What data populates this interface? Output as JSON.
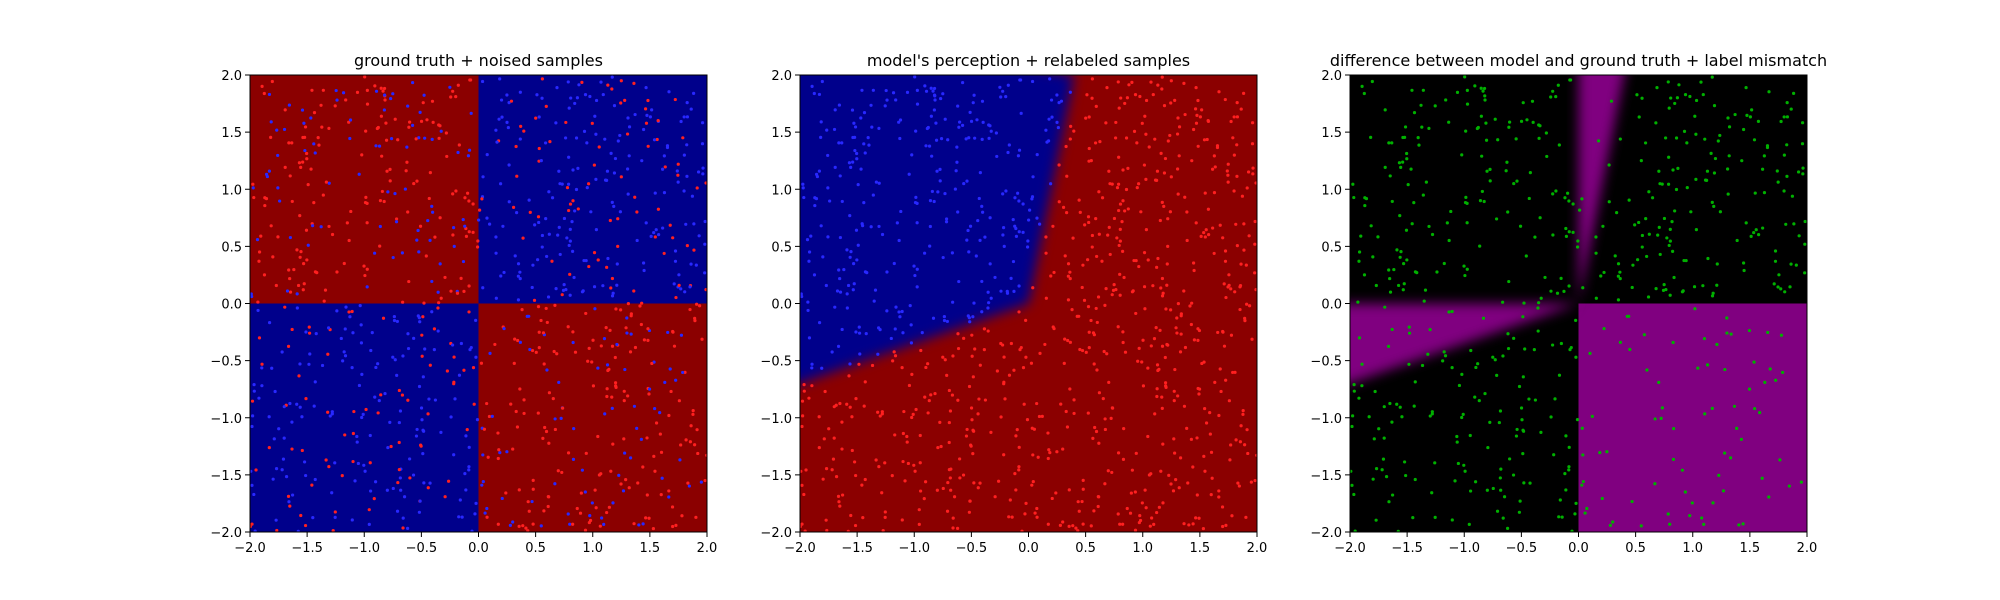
{
  "chart_data": [
    {
      "type": "heatmap",
      "title": "ground truth + noised samples",
      "xlim": [
        -2.0,
        2.0
      ],
      "ylim": [
        -2.0,
        2.0
      ],
      "xticks": [
        "−2.0",
        "−1.5",
        "−1.0",
        "−0.5",
        "0.0",
        "0.5",
        "1.0",
        "1.5",
        "2.0"
      ],
      "yticks": [
        "−2.0",
        "−1.5",
        "−1.0",
        "−0.5",
        "0.0",
        "0.5",
        "1.0",
        "1.5",
        "2.0"
      ],
      "background": "xor quadrants: red where x*y<0, blue where x*y>0",
      "region_colors": {
        "negative_product": "#8b0000",
        "positive_product": "#00008b"
      },
      "point_colors": {
        "label_red": "#ff2020",
        "label_blue": "#2828ff"
      },
      "samples": "about 1000 points uniformly spread over the square, labels noised"
    },
    {
      "type": "heatmap",
      "title": "model's perception + relabeled samples",
      "xlim": [
        -2.0,
        2.0
      ],
      "ylim": [
        -2.0,
        2.0
      ],
      "xticks": [
        "−2.0",
        "−1.5",
        "−1.0",
        "−0.5",
        "0.0",
        "0.5",
        "1.0",
        "1.5",
        "2.0"
      ],
      "yticks": [
        "−2.0",
        "−1.5",
        "−1.0",
        "−0.5",
        "0.0",
        "0.5",
        "1.0",
        "1.5",
        "2.0"
      ],
      "background": "blue wedge in upper-left bounded by lines from origin to (0.4, 2.0) and (-2.0, -0.7); red elsewhere; soft boundary",
      "region_colors": {
        "class_blue": "#00008b",
        "class_red": "#8b0000"
      },
      "point_colors": {
        "label_red": "#ff2020",
        "label_blue": "#2828ff"
      },
      "samples": "blue points inside the blue wedge, red points elsewhere"
    },
    {
      "type": "heatmap",
      "title": "difference between model and ground truth + label mismatch",
      "xlim": [
        -2.0,
        2.0
      ],
      "ylim": [
        -2.0,
        2.0
      ],
      "xticks": [
        "−2.0",
        "−1.5",
        "−1.0",
        "−0.5",
        "0.0",
        "0.5",
        "1.0",
        "1.5",
        "2.0"
      ],
      "yticks": [
        "−2.0",
        "−1.5",
        "−1.0",
        "−0.5",
        "0.0",
        "0.5",
        "1.0",
        "1.5",
        "2.0"
      ],
      "background": "magenta where model and ground truth disagree, black where they agree",
      "region_colors": {
        "mismatch": "#800080",
        "match": "#000000"
      },
      "point_colors": {
        "mismatch_sample": "#00b000"
      },
      "samples": "green points where relabeled sample disagrees with original label"
    }
  ]
}
